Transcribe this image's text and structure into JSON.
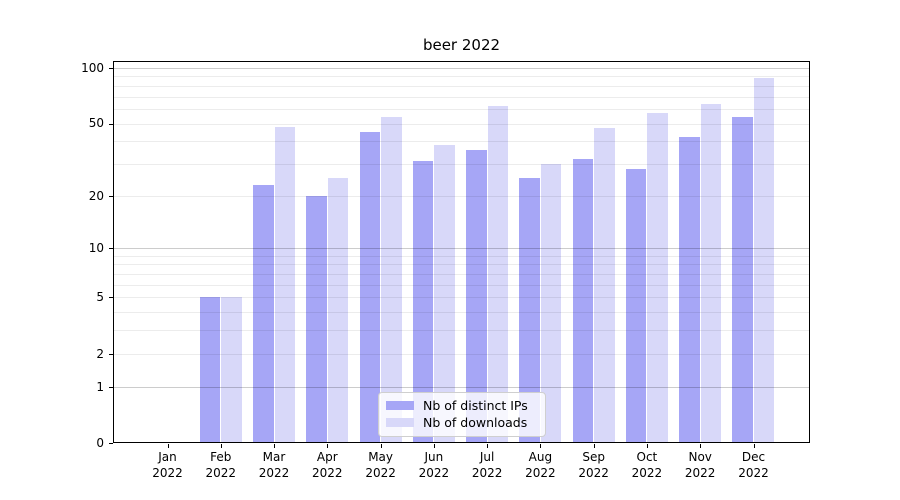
{
  "chart_data": {
    "type": "bar",
    "title": "beer 2022",
    "categories": [
      {
        "month": "Jan",
        "year": "2022"
      },
      {
        "month": "Feb",
        "year": "2022"
      },
      {
        "month": "Mar",
        "year": "2022"
      },
      {
        "month": "Apr",
        "year": "2022"
      },
      {
        "month": "May",
        "year": "2022"
      },
      {
        "month": "Jun",
        "year": "2022"
      },
      {
        "month": "Jul",
        "year": "2022"
      },
      {
        "month": "Aug",
        "year": "2022"
      },
      {
        "month": "Sep",
        "year": "2022"
      },
      {
        "month": "Oct",
        "year": "2022"
      },
      {
        "month": "Nov",
        "year": "2022"
      },
      {
        "month": "Dec",
        "year": "2022"
      }
    ],
    "series": [
      {
        "name": "Nb of distinct IPs",
        "color": "#a6a6f6",
        "values": [
          0,
          5,
          23,
          20,
          45,
          31,
          36,
          25,
          32,
          28,
          42,
          54
        ]
      },
      {
        "name": "Nb of downloads",
        "color": "#d8d8f9",
        "values": [
          0,
          5,
          48,
          25,
          54,
          38,
          62,
          30,
          47,
          57,
          64,
          88
        ]
      }
    ],
    "yscale": "log1p",
    "ylim": [
      0,
      109
    ],
    "yticks": [
      0,
      1,
      2,
      5,
      10,
      20,
      50,
      100
    ],
    "major_gridlines": [
      1,
      10,
      100
    ],
    "minor_gridlines": [
      3,
      4,
      6,
      7,
      8,
      9,
      30,
      40,
      60,
      70,
      80,
      90
    ],
    "grid": "on, drawn above bars",
    "legend_position": "lower center"
  }
}
